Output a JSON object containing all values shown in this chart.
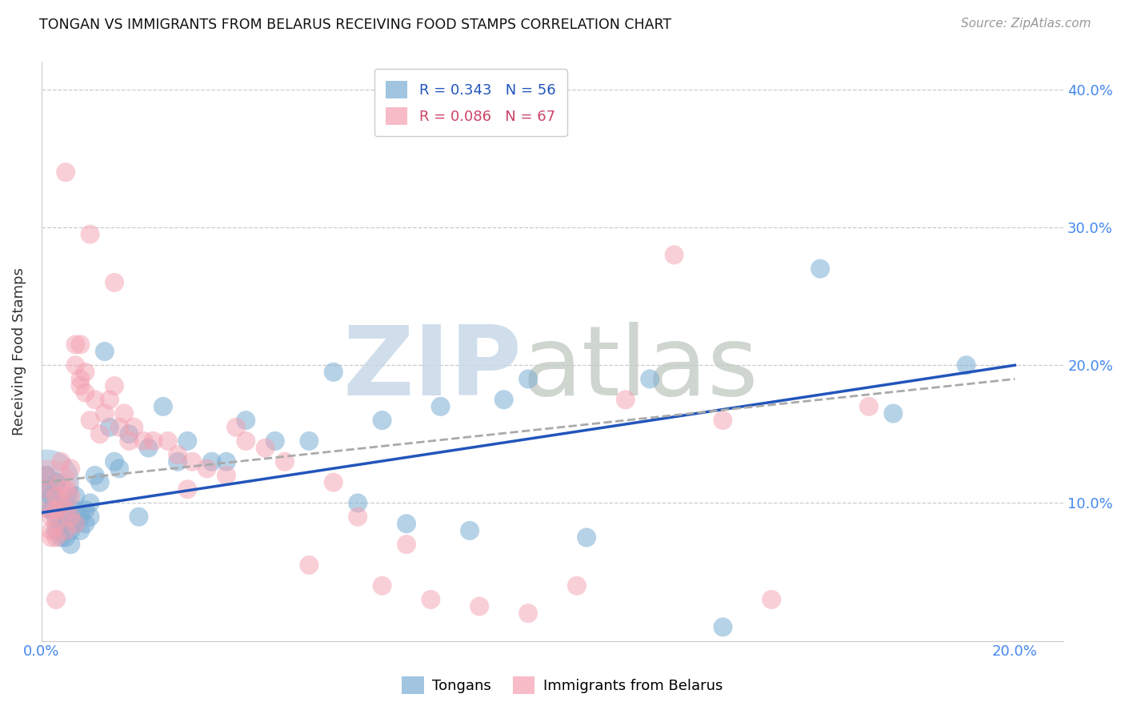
{
  "title": "TONGAN VS IMMIGRANTS FROM BELARUS RECEIVING FOOD STAMPS CORRELATION CHART",
  "source": "Source: ZipAtlas.com",
  "ylabel": "Receiving Food Stamps",
  "xlim": [
    0.0,
    0.21
  ],
  "ylim": [
    0.0,
    0.42
  ],
  "blue_color": "#7aadd4",
  "pink_color": "#f4a0b0",
  "line_blue_color": "#2255bb",
  "line_pink_color": "#cc4466",
  "line_gray_color": "#aaaaaa",
  "tick_label_color": "#4488ee",
  "grid_color": "#cccccc",
  "background_color": "#ffffff",
  "watermark_zip_color": "#c8d8e8",
  "watermark_atlas_color": "#c0c8c0",
  "tongan_x": [
    0.001,
    0.001,
    0.002,
    0.002,
    0.003,
    0.003,
    0.003,
    0.004,
    0.004,
    0.004,
    0.005,
    0.005,
    0.005,
    0.006,
    0.006,
    0.006,
    0.007,
    0.007,
    0.007,
    0.008,
    0.008,
    0.009,
    0.009,
    0.01,
    0.01,
    0.011,
    0.012,
    0.013,
    0.014,
    0.015,
    0.016,
    0.018,
    0.02,
    0.022,
    0.025,
    0.028,
    0.03,
    0.035,
    0.038,
    0.042,
    0.048,
    0.055,
    0.06,
    0.065,
    0.07,
    0.075,
    0.082,
    0.088,
    0.095,
    0.1,
    0.112,
    0.125,
    0.14,
    0.16,
    0.175,
    0.19
  ],
  "tongan_y": [
    0.12,
    0.11,
    0.105,
    0.095,
    0.115,
    0.09,
    0.08,
    0.1,
    0.085,
    0.075,
    0.095,
    0.085,
    0.075,
    0.09,
    0.08,
    0.07,
    0.095,
    0.085,
    0.105,
    0.09,
    0.08,
    0.095,
    0.085,
    0.1,
    0.09,
    0.12,
    0.115,
    0.21,
    0.155,
    0.13,
    0.125,
    0.15,
    0.09,
    0.14,
    0.17,
    0.13,
    0.145,
    0.13,
    0.13,
    0.16,
    0.145,
    0.145,
    0.195,
    0.1,
    0.16,
    0.085,
    0.17,
    0.08,
    0.175,
    0.19,
    0.075,
    0.19,
    0.01,
    0.27,
    0.165,
    0.2
  ],
  "belarus_x": [
    0.001,
    0.001,
    0.002,
    0.002,
    0.002,
    0.003,
    0.003,
    0.003,
    0.003,
    0.004,
    0.004,
    0.004,
    0.005,
    0.005,
    0.005,
    0.006,
    0.006,
    0.006,
    0.007,
    0.007,
    0.007,
    0.008,
    0.008,
    0.008,
    0.009,
    0.009,
    0.01,
    0.011,
    0.012,
    0.013,
    0.014,
    0.015,
    0.016,
    0.017,
    0.018,
    0.019,
    0.021,
    0.023,
    0.026,
    0.028,
    0.031,
    0.034,
    0.038,
    0.042,
    0.046,
    0.05,
    0.055,
    0.06,
    0.065,
    0.07,
    0.075,
    0.08,
    0.09,
    0.1,
    0.11,
    0.12,
    0.13,
    0.14,
    0.15,
    0.17,
    0.03,
    0.04,
    0.015,
    0.01,
    0.005,
    0.003,
    0.002
  ],
  "belarus_y": [
    0.11,
    0.12,
    0.09,
    0.095,
    0.08,
    0.085,
    0.075,
    0.095,
    0.105,
    0.1,
    0.115,
    0.13,
    0.08,
    0.095,
    0.11,
    0.125,
    0.09,
    0.105,
    0.085,
    0.2,
    0.215,
    0.215,
    0.19,
    0.185,
    0.195,
    0.18,
    0.16,
    0.175,
    0.15,
    0.165,
    0.175,
    0.185,
    0.155,
    0.165,
    0.145,
    0.155,
    0.145,
    0.145,
    0.145,
    0.135,
    0.13,
    0.125,
    0.12,
    0.145,
    0.14,
    0.13,
    0.055,
    0.115,
    0.09,
    0.04,
    0.07,
    0.03,
    0.025,
    0.02,
    0.04,
    0.175,
    0.28,
    0.16,
    0.03,
    0.17,
    0.11,
    0.155,
    0.26,
    0.295,
    0.34,
    0.03,
    0.075
  ],
  "tongan_large_x": [
    0.001
  ],
  "tongan_large_y": [
    0.115
  ],
  "tongan_large_s": 3500,
  "belarus_large_x": [
    0.0015
  ],
  "belarus_large_y": [
    0.11
  ],
  "belarus_large_s": 2800,
  "blue_line_x0": 0.0,
  "blue_line_x1": 0.2,
  "blue_line_y0": 0.093,
  "blue_line_y1": 0.2,
  "pink_line_x0": 0.0,
  "pink_line_x1": 0.2,
  "pink_line_y0": 0.115,
  "pink_line_y1": 0.19
}
